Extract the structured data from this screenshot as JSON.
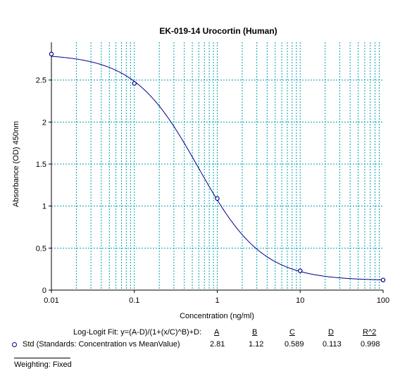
{
  "chart_data": {
    "type": "line",
    "title": "EK-019-14 Urocortin (Human)",
    "xlabel": "Concentration (ng/ml)",
    "ylabel": "Absorbance (OD) 450nm",
    "x_scale": "log",
    "xlim": [
      0.01,
      100
    ],
    "ylim": [
      0,
      2.95
    ],
    "x_ticks": [
      0.01,
      0.1,
      1,
      10,
      100
    ],
    "x_tick_labels": [
      "0.01",
      "0.1",
      "1",
      "10",
      "100"
    ],
    "y_ticks": [
      0,
      0.5,
      1,
      1.5,
      2,
      2.5
    ],
    "y_tick_labels": [
      "0",
      "0.5",
      "1",
      "1.5",
      "2",
      "2.5"
    ],
    "grid": true,
    "series": [
      {
        "name": "Std (Standards: Concentration vs MeanValue)",
        "type": "scatter",
        "color": "#00008b",
        "marker": "circle",
        "x": [
          0.01,
          0.1,
          1,
          10,
          100
        ],
        "y": [
          2.81,
          2.46,
          1.09,
          0.23,
          0.12
        ]
      },
      {
        "name": "Log-Logit Fit",
        "type": "line",
        "color": "#00008b",
        "fit": {
          "A": 2.81,
          "B": 1.12,
          "C": 0.589,
          "D": 0.113
        }
      }
    ]
  },
  "fit_table": {
    "formula_label": "Log-Logit Fit: y=(A-D)/(1+(x/C)^B)+D:",
    "headers": [
      "A",
      "B",
      "C",
      "D",
      "R^2"
    ],
    "legend_label": "Std (Standards: Concentration vs MeanValue)",
    "values": [
      "2.81",
      "1.12",
      "0.589",
      "0.113",
      "0.998"
    ]
  },
  "footer": {
    "weighting": "Weighting: Fixed"
  },
  "colors": {
    "grid": "#00a0b0",
    "series": "#00008b"
  }
}
